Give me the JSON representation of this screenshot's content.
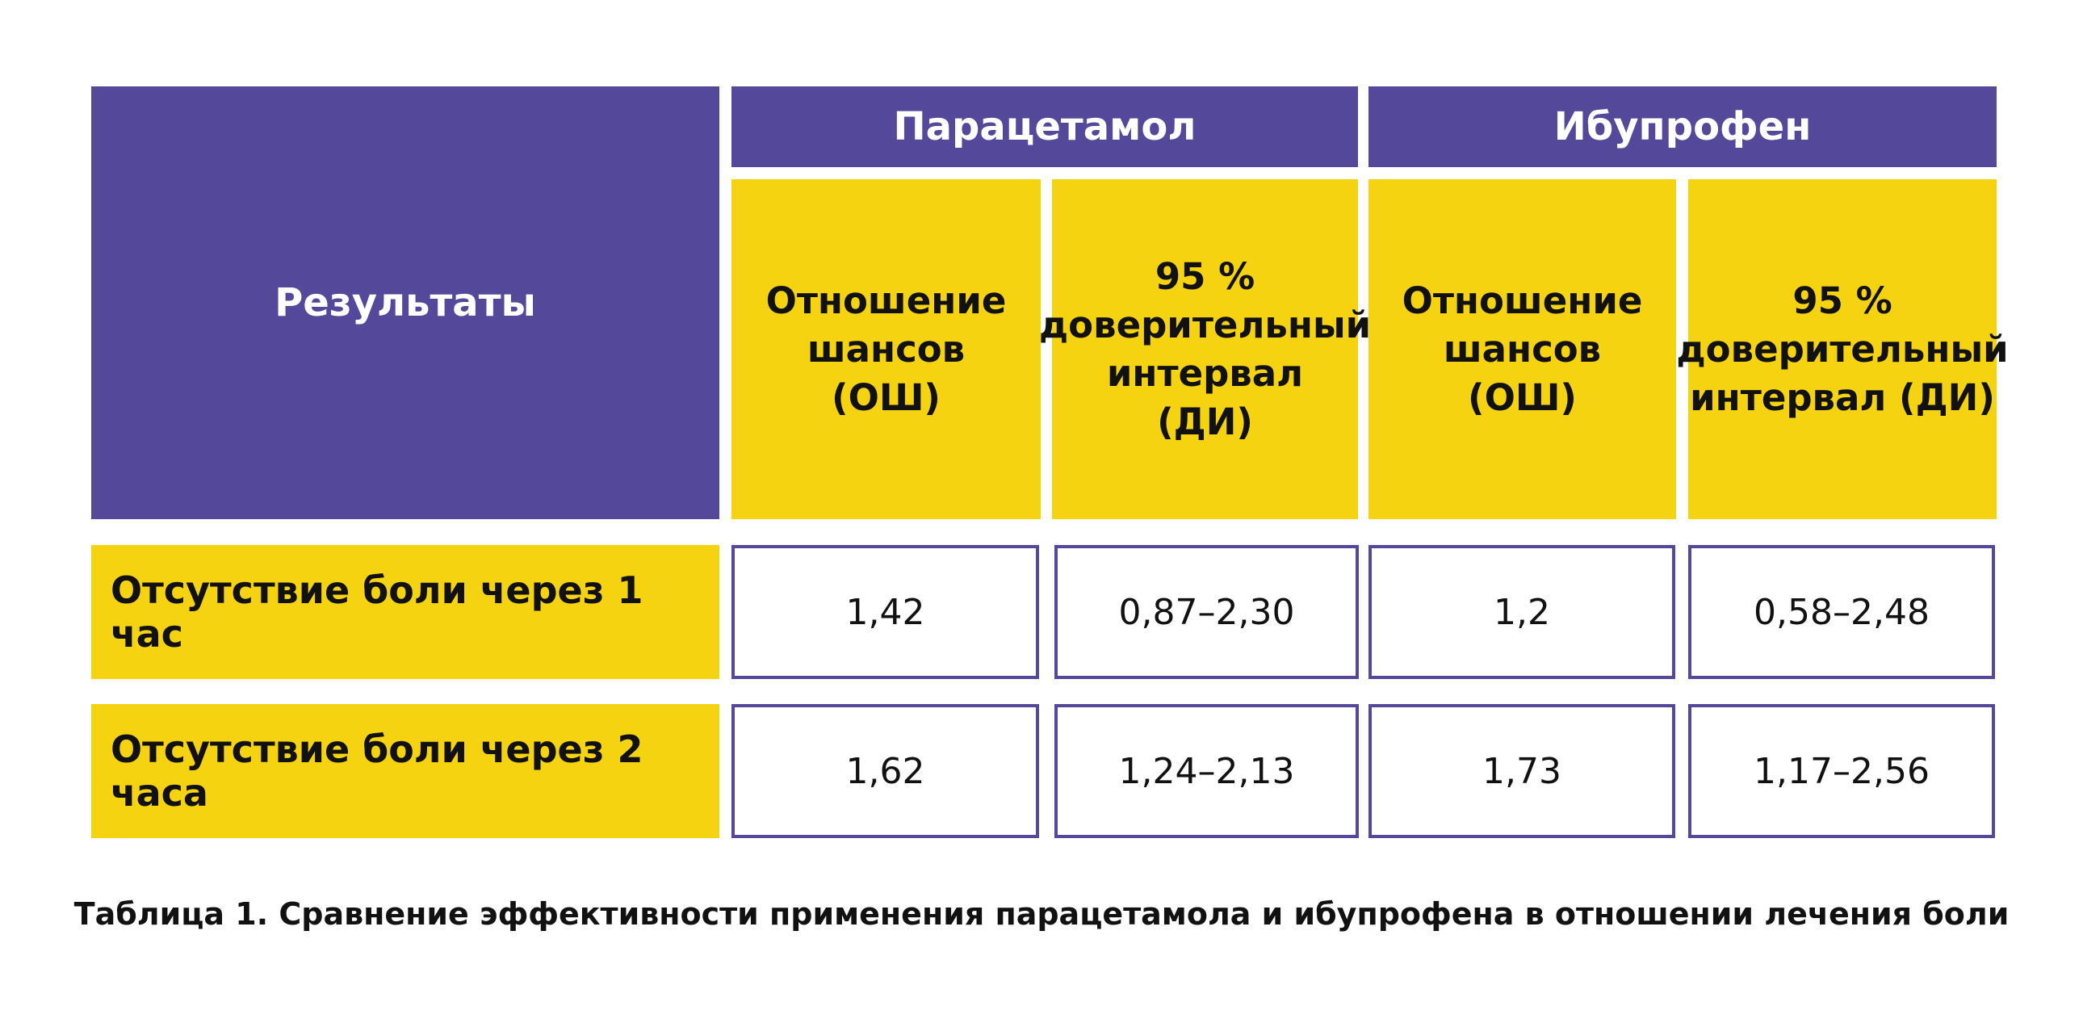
{
  "table": {
    "results_header": "Результаты",
    "groups": [
      {
        "label": "Парацетамол"
      },
      {
        "label": "Ибупрофен"
      }
    ],
    "subheaders": [
      "Отношение\nшансов\n(ОШ)",
      "95 %\nдоверительный\nинтервал\n(ДИ)",
      "Отношение\nшансов\n(ОШ)",
      "95 %\nдоверительный\nинтервал (ДИ)"
    ],
    "rows": [
      {
        "label": "Отсутствие боли через 1 час",
        "values": [
          "1,42",
          "0,87–2,30",
          "1,2",
          "0,58–2,48"
        ]
      },
      {
        "label": "Отсутствие боли через 2 часа",
        "values": [
          "1,62",
          "1,24–2,13",
          "1,73",
          "1,17–2,56"
        ]
      }
    ]
  },
  "caption": "Таблица 1. Сравнение эффективности применения парацетамола и ибупрофена в отношении лечения боли",
  "colors": {
    "purple": "#54489A",
    "yellow": "#F5D311",
    "border": "#54489A"
  }
}
